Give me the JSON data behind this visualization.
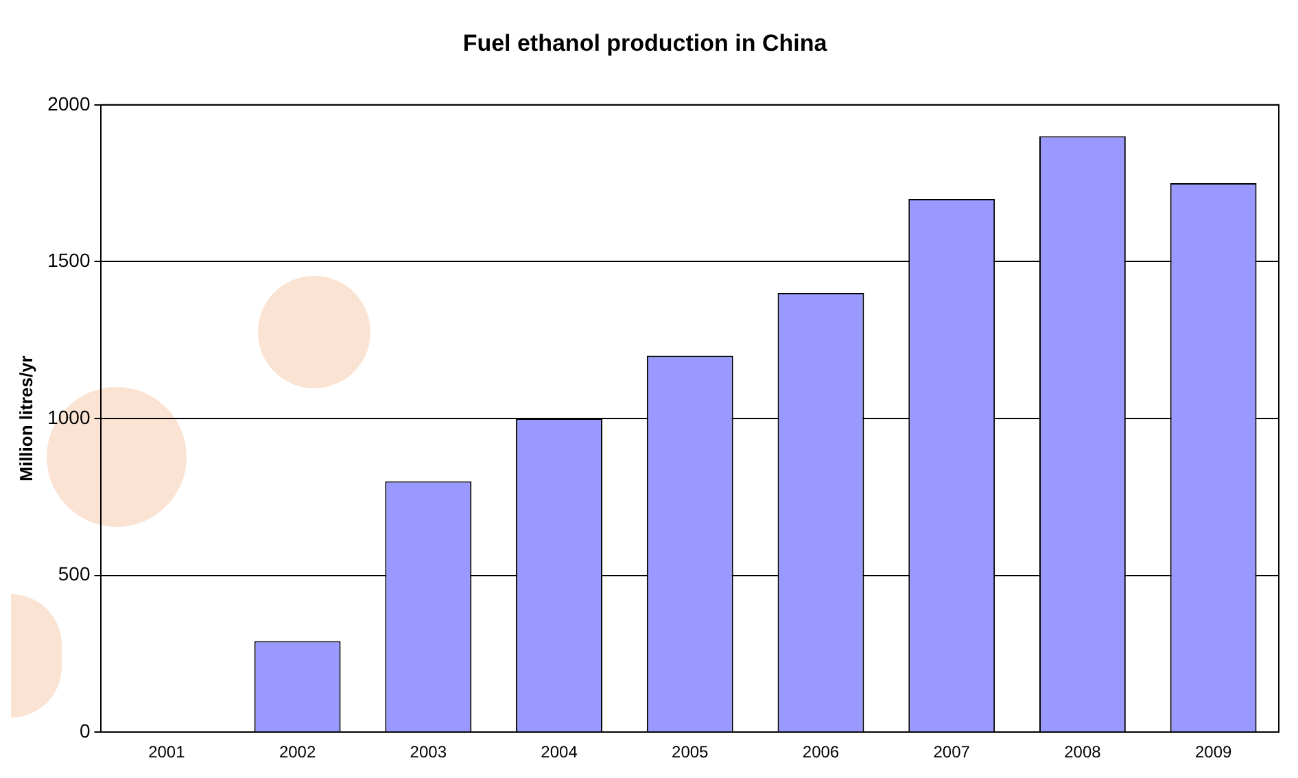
{
  "chart_data": {
    "type": "bar",
    "title": "Fuel ethanol production in China",
    "ylabel": "Million litres/yr",
    "categories": [
      "2001",
      "2002",
      "2003",
      "2004",
      "2005",
      "2006",
      "2007",
      "2008",
      "2009"
    ],
    "values": [
      0,
      290,
      800,
      1000,
      1200,
      1400,
      1700,
      1900,
      1750
    ],
    "color": "#9999ff",
    "ylim": [
      0,
      2000
    ],
    "yticks": [
      0,
      500,
      1000,
      1500,
      2000
    ],
    "grid": "y",
    "legend": false
  }
}
